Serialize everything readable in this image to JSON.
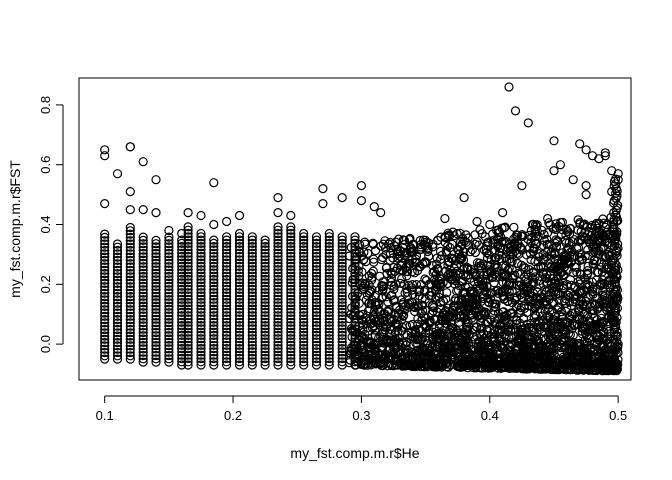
{
  "chart_data": {
    "type": "scatter",
    "title": "",
    "xlabel": "my_fst.comp.m.r$He",
    "ylabel": "my_fst.comp.m.r$FST",
    "xlim": [
      0.08,
      0.51
    ],
    "ylim": [
      -0.12,
      0.89
    ],
    "xticks": [
      0.1,
      0.2,
      0.3,
      0.4,
      0.5
    ],
    "xtick_labels": [
      "0.1",
      "0.2",
      "0.3",
      "0.4",
      "0.5"
    ],
    "yticks": [
      0.0,
      0.2,
      0.4,
      0.6,
      0.8
    ],
    "ytick_labels": [
      "0.0",
      "0.2",
      "0.4",
      "0.6",
      "0.8"
    ],
    "grid": false,
    "marker": "open-circle",
    "series": [
      {
        "values": [
          [
            0.1,
            0.65
          ],
          [
            0.1,
            0.63
          ],
          [
            0.1,
            0.47
          ],
          [
            0.11,
            0.57
          ],
          [
            0.12,
            0.66
          ],
          [
            0.12,
            0.66
          ],
          [
            0.12,
            0.51
          ],
          [
            0.12,
            0.45
          ],
          [
            0.13,
            0.61
          ],
          [
            0.13,
            0.45
          ],
          [
            0.14,
            0.55
          ],
          [
            0.14,
            0.44
          ],
          [
            0.15,
            0.38
          ],
          [
            0.16,
            0.37
          ],
          [
            0.165,
            0.44
          ],
          [
            0.175,
            0.43
          ],
          [
            0.185,
            0.54
          ],
          [
            0.185,
            0.4
          ],
          [
            0.195,
            0.41
          ],
          [
            0.205,
            0.43
          ],
          [
            0.235,
            0.49
          ],
          [
            0.235,
            0.44
          ],
          [
            0.245,
            0.43
          ],
          [
            0.27,
            0.52
          ],
          [
            0.27,
            0.47
          ],
          [
            0.285,
            0.49
          ],
          [
            0.3,
            0.53
          ],
          [
            0.3,
            0.48
          ],
          [
            0.31,
            0.46
          ],
          [
            0.315,
            0.44
          ],
          [
            0.38,
            0.49
          ],
          [
            0.365,
            0.42
          ],
          [
            0.39,
            0.41
          ],
          [
            0.4,
            0.4
          ],
          [
            0.41,
            0.44
          ],
          [
            0.415,
            0.86
          ],
          [
            0.42,
            0.78
          ],
          [
            0.43,
            0.74
          ],
          [
            0.425,
            0.53
          ],
          [
            0.445,
            0.42
          ],
          [
            0.45,
            0.68
          ],
          [
            0.45,
            0.58
          ],
          [
            0.455,
            0.6
          ],
          [
            0.465,
            0.55
          ],
          [
            0.47,
            0.67
          ],
          [
            0.475,
            0.65
          ],
          [
            0.48,
            0.63
          ],
          [
            0.485,
            0.62
          ],
          [
            0.49,
            0.64
          ],
          [
            0.49,
            0.63
          ],
          [
            0.495,
            0.58
          ],
          [
            0.495,
            0.51
          ],
          [
            0.5,
            0.57
          ],
          [
            0.5,
            0.55
          ],
          [
            0.475,
            0.53
          ],
          [
            0.475,
            0.5
          ]
        ]
      }
    ],
    "dense_columns": [
      {
        "x": 0.1,
        "ymin": -0.05,
        "ymax": 0.37
      },
      {
        "x": 0.11,
        "ymin": -0.05,
        "ymax": 0.34
      },
      {
        "x": 0.12,
        "ymin": -0.05,
        "ymax": 0.4
      },
      {
        "x": 0.13,
        "ymin": -0.06,
        "ymax": 0.36
      },
      {
        "x": 0.14,
        "ymin": -0.06,
        "ymax": 0.35
      },
      {
        "x": 0.15,
        "ymin": -0.06,
        "ymax": 0.36
      },
      {
        "x": 0.16,
        "ymin": -0.07,
        "ymax": 0.35
      },
      {
        "x": 0.165,
        "ymin": -0.07,
        "ymax": 0.4
      },
      {
        "x": 0.175,
        "ymin": -0.07,
        "ymax": 0.38
      },
      {
        "x": 0.185,
        "ymin": -0.07,
        "ymax": 0.35
      },
      {
        "x": 0.195,
        "ymin": -0.07,
        "ymax": 0.37
      },
      {
        "x": 0.205,
        "ymin": -0.07,
        "ymax": 0.38
      },
      {
        "x": 0.215,
        "ymin": -0.07,
        "ymax": 0.36
      },
      {
        "x": 0.225,
        "ymin": -0.07,
        "ymax": 0.35
      },
      {
        "x": 0.235,
        "ymin": -0.07,
        "ymax": 0.4
      },
      {
        "x": 0.245,
        "ymin": -0.07,
        "ymax": 0.4
      },
      {
        "x": 0.255,
        "ymin": -0.07,
        "ymax": 0.38
      },
      {
        "x": 0.265,
        "ymin": -0.07,
        "ymax": 0.37
      },
      {
        "x": 0.275,
        "ymin": -0.07,
        "ymax": 0.38
      },
      {
        "x": 0.285,
        "ymin": -0.07,
        "ymax": 0.37
      },
      {
        "x": 0.295,
        "ymin": -0.07,
        "ymax": 0.37
      }
    ],
    "dense_region": {
      "xmin": 0.29,
      "xmax": 0.5,
      "ymin_start": -0.07,
      "ymax_start": 0.34,
      "ymin_end": -0.09,
      "ymax_end": 0.43,
      "edge_column": {
        "x": 0.5,
        "ymin": -0.08,
        "ymax": 0.56
      }
    }
  }
}
